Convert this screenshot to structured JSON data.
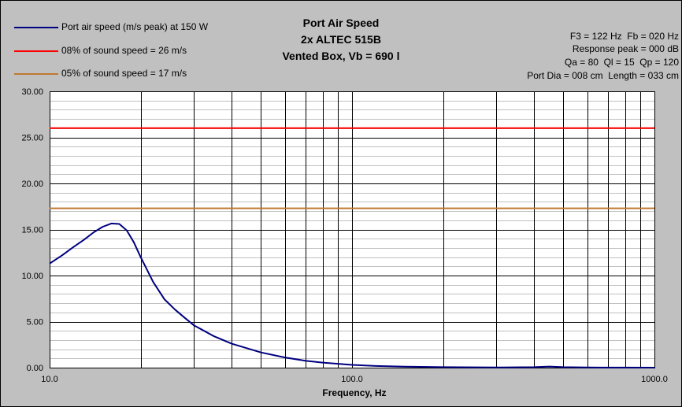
{
  "chart_data": {
    "type": "line",
    "title_lines": [
      "Port Air Speed",
      "2x ALTEC 515B",
      "Vented Box, Vb = 690 l"
    ],
    "xlabel": "Frequency, Hz",
    "ylabel": "",
    "x_scale": "log",
    "xlim": [
      10,
      1000
    ],
    "ylim": [
      0,
      30
    ],
    "x_ticks": [
      "10.0",
      "100.0",
      "1000.0"
    ],
    "y_ticks": [
      "0.00",
      "5.00",
      "10.00",
      "15.00",
      "20.00",
      "25.00",
      "30.00"
    ],
    "grid": true,
    "legend_position": "top-left",
    "series": [
      {
        "name": "Port air speed (m/s peak) at 150 W",
        "color": "#000080",
        "x": [
          10,
          11,
          12,
          13,
          14,
          15,
          16,
          17,
          18,
          19,
          20,
          22,
          24,
          26,
          28,
          30,
          35,
          40,
          50,
          60,
          70,
          80,
          100,
          120,
          150,
          200,
          300,
          400,
          450,
          500,
          600,
          800,
          1000
        ],
        "y": [
          11.3,
          12.2,
          13.1,
          13.9,
          14.7,
          15.3,
          15.65,
          15.6,
          14.9,
          13.6,
          12.0,
          9.3,
          7.4,
          6.3,
          5.4,
          4.6,
          3.4,
          2.6,
          1.65,
          1.1,
          0.75,
          0.55,
          0.3,
          0.18,
          0.1,
          0.05,
          0.02,
          0.05,
          0.12,
          0.05,
          0.02,
          0.01,
          0.0
        ]
      },
      {
        "name": "08% of sound speed = 26 m/s",
        "color": "#ff0000",
        "x": [
          10,
          1000
        ],
        "y": [
          26,
          26
        ]
      },
      {
        "name": "05% of sound speed = 17 m/s",
        "color": "#c07830",
        "x": [
          10,
          1000
        ],
        "y": [
          17.3,
          17.3
        ]
      }
    ],
    "params": [
      "F3 = 122 Hz  Fb = 020 Hz",
      "Response peak = 000 dB",
      "Qa = 80  Ql = 15  Qp = 120",
      "Port Dia = 008 cm  Length = 033 cm"
    ]
  }
}
